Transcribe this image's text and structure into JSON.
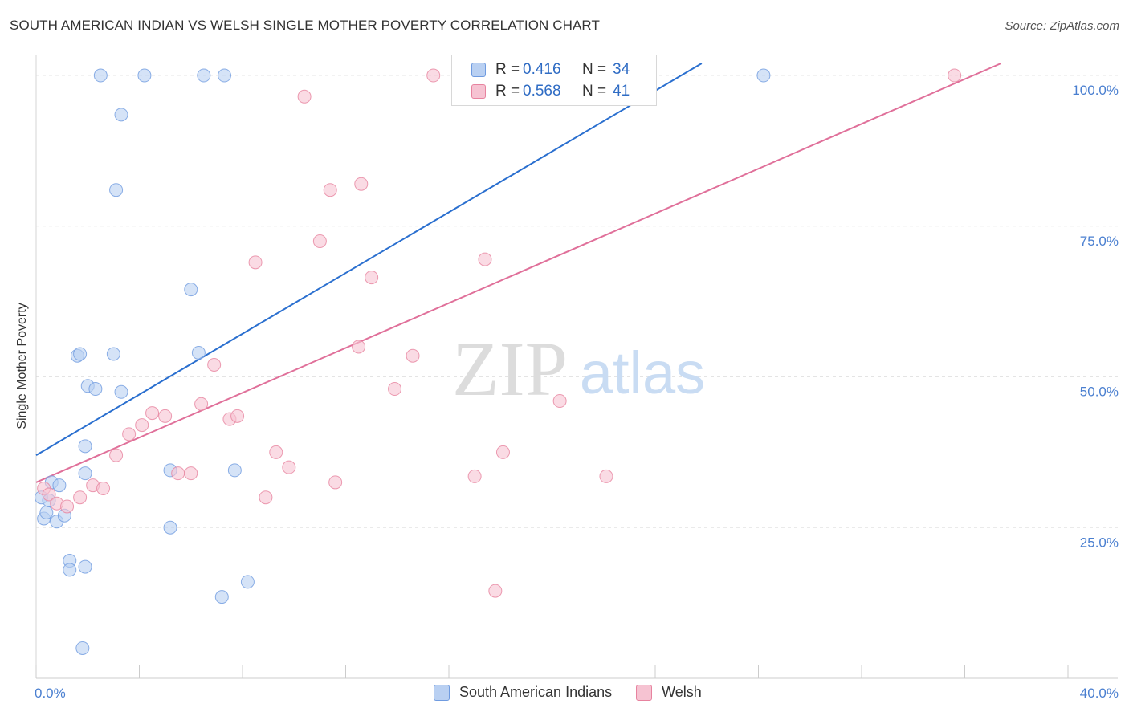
{
  "title": "SOUTH AMERICAN INDIAN VS WELSH SINGLE MOTHER POVERTY CORRELATION CHART",
  "source": "Source: ZipAtlas.com",
  "watermark": {
    "zip": "ZIP",
    "atlas": "atlas"
  },
  "legend": {
    "r_label": "R =",
    "n_label": "N =",
    "rows": [
      {
        "r": "0.416",
        "n": "34"
      },
      {
        "r": "0.568",
        "n": "41"
      }
    ]
  },
  "chart_data": {
    "type": "scatter",
    "title": "SOUTH AMERICAN INDIAN VS WELSH SINGLE MOTHER POVERTY CORRELATION CHART",
    "xlabel": "",
    "ylabel": "Single Mother Poverty",
    "xlim": [
      0,
      40
    ],
    "ylim": [
      0,
      102
    ],
    "x_ticks": [
      {
        "value": 0,
        "label": "0.0%"
      },
      {
        "value": 40,
        "label": "40.0%"
      }
    ],
    "y_ticks": [
      {
        "value": 25,
        "label": "25.0%"
      },
      {
        "value": 50,
        "label": "50.0%"
      },
      {
        "value": 75,
        "label": "75.0%"
      },
      {
        "value": 100,
        "label": "100.0%"
      }
    ],
    "grid": true,
    "legend_position": "top-center",
    "series": [
      {
        "name": "South American Indians",
        "color": "#6f9be0",
        "fill": "#b9d0f2",
        "r": 0.416,
        "n": 34,
        "trend": {
          "x0": 0,
          "y0": 37.0,
          "x1": 25.8,
          "y1": 102
        },
        "points": [
          [
            0.2,
            30.0
          ],
          [
            0.3,
            26.5
          ],
          [
            0.4,
            27.5
          ],
          [
            0.5,
            29.5
          ],
          [
            0.6,
            32.5
          ],
          [
            0.9,
            32.0
          ],
          [
            0.8,
            26.0
          ],
          [
            1.1,
            27.0
          ],
          [
            1.3,
            19.5
          ],
          [
            1.3,
            18.0
          ],
          [
            1.8,
            5.0
          ],
          [
            1.9,
            18.5
          ],
          [
            1.9,
            34.0
          ],
          [
            1.9,
            38.5
          ],
          [
            2.0,
            48.5
          ],
          [
            2.3,
            48.0
          ],
          [
            1.6,
            53.5
          ],
          [
            1.7,
            53.8
          ],
          [
            3.0,
            53.8
          ],
          [
            3.3,
            47.5
          ],
          [
            3.1,
            81.0
          ],
          [
            3.3,
            93.5
          ],
          [
            4.2,
            100
          ],
          [
            2.5,
            100
          ],
          [
            6.5,
            100
          ],
          [
            7.3,
            100
          ],
          [
            6.0,
            64.5
          ],
          [
            6.3,
            54.0
          ],
          [
            5.2,
            34.5
          ],
          [
            7.7,
            34.5
          ],
          [
            5.2,
            25.0
          ],
          [
            7.2,
            13.5
          ],
          [
            8.2,
            16.0
          ],
          [
            28.2,
            100
          ]
        ]
      },
      {
        "name": "Welsh",
        "color": "#e7839f",
        "fill": "#f6c3d2",
        "r": 0.568,
        "n": 41,
        "trend": {
          "x0": 0,
          "y0": 32.5,
          "x1": 37.4,
          "y1": 102
        },
        "points": [
          [
            0.3,
            31.5
          ],
          [
            0.5,
            30.5
          ],
          [
            0.8,
            29.0
          ],
          [
            1.2,
            28.5
          ],
          [
            1.7,
            30.0
          ],
          [
            2.2,
            32.0
          ],
          [
            2.6,
            31.5
          ],
          [
            3.1,
            37.0
          ],
          [
            3.6,
            40.5
          ],
          [
            4.1,
            42.0
          ],
          [
            4.5,
            44.0
          ],
          [
            5.0,
            43.5
          ],
          [
            5.5,
            34.0
          ],
          [
            6.0,
            34.0
          ],
          [
            6.4,
            45.5
          ],
          [
            6.9,
            52.0
          ],
          [
            7.5,
            43.0
          ],
          [
            7.8,
            43.5
          ],
          [
            8.5,
            69.0
          ],
          [
            8.9,
            30.0
          ],
          [
            9.3,
            37.5
          ],
          [
            9.8,
            35.0
          ],
          [
            10.4,
            96.5
          ],
          [
            11.0,
            72.5
          ],
          [
            11.4,
            81.0
          ],
          [
            11.6,
            32.5
          ],
          [
            12.5,
            55.0
          ],
          [
            12.6,
            82.0
          ],
          [
            13.0,
            66.5
          ],
          [
            13.9,
            48.0
          ],
          [
            14.6,
            53.5
          ],
          [
            15.4,
            100
          ],
          [
            17.0,
            33.5
          ],
          [
            17.4,
            69.5
          ],
          [
            17.8,
            14.5
          ],
          [
            18.1,
            37.5
          ],
          [
            20.3,
            46.0
          ],
          [
            22.1,
            33.5
          ],
          [
            23.7,
            100
          ],
          [
            35.6,
            100
          ],
          [
            19.8,
            100
          ]
        ]
      }
    ]
  }
}
